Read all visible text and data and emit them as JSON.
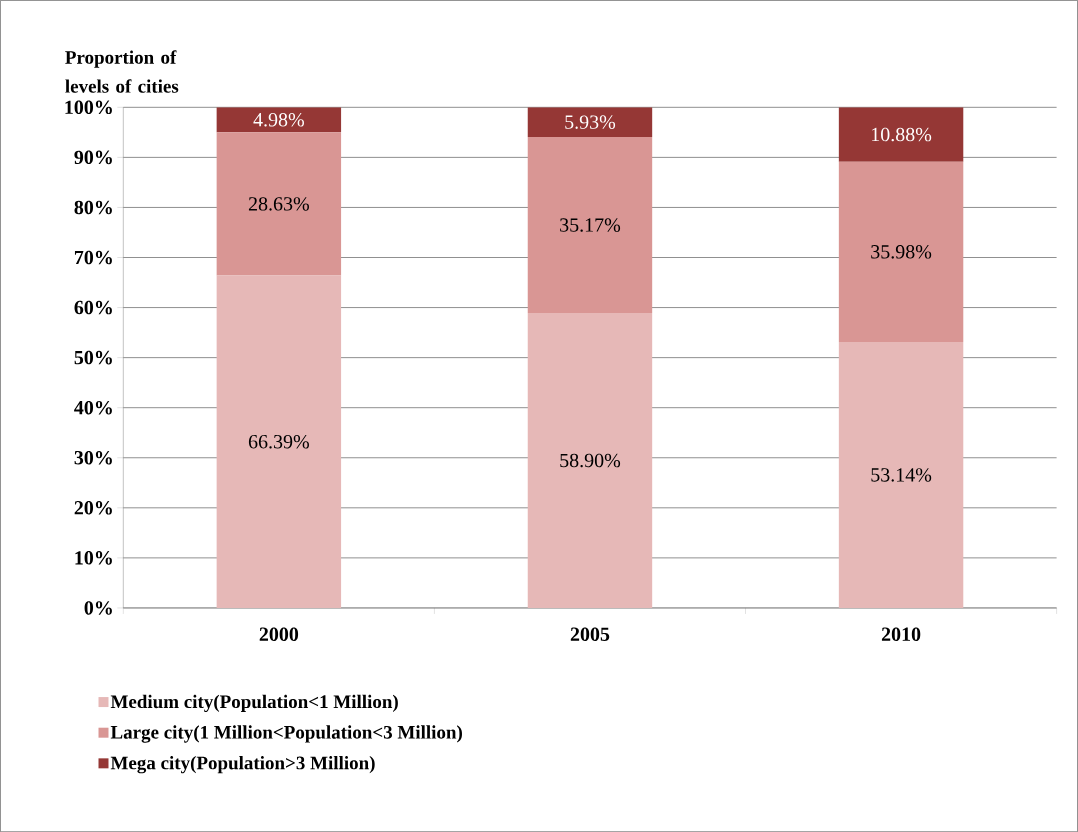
{
  "chart_data": {
    "type": "bar",
    "stacked": true,
    "ylabel": "Proportion of levels of cities",
    "categories": [
      "2000",
      "2005",
      "2010"
    ],
    "series": [
      {
        "name": "Medium city(Population<1 Million)",
        "color": "#e6b8b7",
        "values": [
          66.39,
          58.9,
          53.14
        ],
        "value_labels": [
          "66.39%",
          "58.90%",
          "53.14%"
        ]
      },
      {
        "name": "Large city(1 Million<Population<3 Million)",
        "color": "#d99694",
        "values": [
          28.63,
          35.17,
          35.98
        ],
        "value_labels": [
          "28.63%",
          "35.17%",
          "35.98%"
        ]
      },
      {
        "name": "Mega city(Population>3 Million)",
        "color": "#953735",
        "values": [
          4.98,
          5.93,
          10.88
        ],
        "value_labels": [
          "4.98%",
          "5.93%",
          "10.88%"
        ]
      }
    ],
    "ylim": [
      0,
      100
    ],
    "yticks": [
      {
        "value": 0,
        "label": "0%"
      },
      {
        "value": 10,
        "label": "10%"
      },
      {
        "value": 20,
        "label": "20%"
      },
      {
        "value": 30,
        "label": "30%"
      },
      {
        "value": 40,
        "label": "40%"
      },
      {
        "value": 50,
        "label": "50%"
      },
      {
        "value": 60,
        "label": "60%"
      },
      {
        "value": 70,
        "label": "70%"
      },
      {
        "value": 80,
        "label": "80%"
      },
      {
        "value": 90,
        "label": "90%"
      },
      {
        "value": 100,
        "label": "100%"
      }
    ],
    "grid": "y",
    "legend": "bottom"
  }
}
